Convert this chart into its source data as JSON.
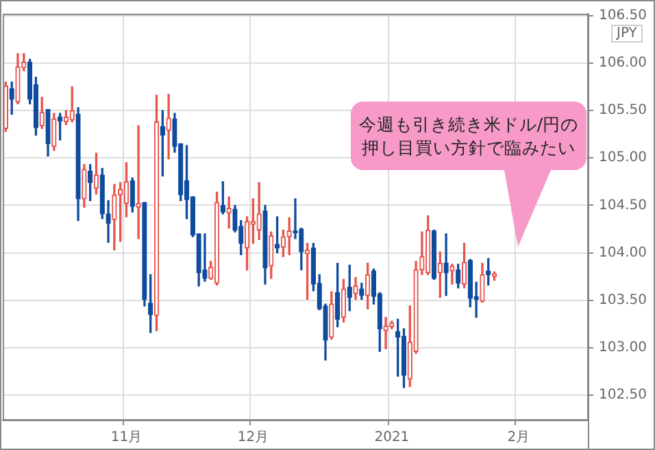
{
  "chart_data": {
    "type": "candlestick",
    "ylabel": "JPY",
    "annotations": [
      "今週も引き続き米ドル/円の押し目買い方針で臨みたい"
    ],
    "categories": [
      null,
      null,
      null,
      null,
      null,
      null,
      null,
      null,
      null,
      null,
      null,
      null,
      null,
      null,
      null,
      null,
      null,
      null,
      null,
      null,
      "11月",
      null,
      null,
      null,
      null,
      null,
      null,
      null,
      null,
      null,
      null,
      null,
      null,
      null,
      null,
      null,
      null,
      null,
      null,
      null,
      null,
      "12月",
      null,
      null,
      null,
      null,
      null,
      null,
      null,
      null,
      null,
      null,
      null,
      null,
      null,
      null,
      null,
      null,
      null,
      null,
      null,
      null,
      null,
      null,
      "2021",
      null,
      null,
      null,
      null,
      null,
      null,
      null,
      null,
      null,
      null,
      null,
      null,
      null,
      null,
      null,
      null,
      null,
      null,
      null,
      null,
      "2月",
      null,
      null,
      null,
      null,
      null,
      null,
      null,
      null,
      null,
      null,
      null
    ],
    "ohlc": [
      [
        105.31,
        105.8,
        105.28,
        105.76
      ],
      [
        105.73,
        105.8,
        105.46,
        105.62
      ],
      [
        105.59,
        106.1,
        105.57,
        105.96
      ],
      [
        105.95,
        106.1,
        105.92,
        106.01
      ],
      [
        106.01,
        106.04,
        105.57,
        105.62
      ],
      [
        105.77,
        105.85,
        105.24,
        105.32
      ],
      [
        105.34,
        105.64,
        105.31,
        105.48
      ],
      [
        105.51,
        105.51,
        105.02,
        105.15
      ],
      [
        105.12,
        105.47,
        105.08,
        105.41
      ],
      [
        105.43,
        105.47,
        105.19,
        105.39
      ],
      [
        105.38,
        105.5,
        105.35,
        105.43
      ],
      [
        105.4,
        105.75,
        105.38,
        105.5
      ],
      [
        105.46,
        105.53,
        104.34,
        104.57
      ],
      [
        104.57,
        104.93,
        104.48,
        104.88
      ],
      [
        104.86,
        104.93,
        104.55,
        104.74
      ],
      [
        104.68,
        105.05,
        104.62,
        104.82
      ],
      [
        104.82,
        104.89,
        104.36,
        104.41
      ],
      [
        104.41,
        104.55,
        104.11,
        104.31
      ],
      [
        104.35,
        104.72,
        104.03,
        104.61
      ],
      [
        104.61,
        104.74,
        104.12,
        104.67
      ],
      [
        104.52,
        104.95,
        104.38,
        104.75
      ],
      [
        104.76,
        104.79,
        104.43,
        104.49
      ],
      [
        104.48,
        105.34,
        104.15,
        104.52
      ],
      [
        104.53,
        104.53,
        103.44,
        103.51
      ],
      [
        103.47,
        103.77,
        103.16,
        103.35
      ],
      [
        103.34,
        105.66,
        103.18,
        105.38
      ],
      [
        105.33,
        105.5,
        104.81,
        105.24
      ],
      [
        105.29,
        105.67,
        104.99,
        105.42
      ],
      [
        105.41,
        105.47,
        105.06,
        105.12
      ],
      [
        105.15,
        105.15,
        104.55,
        104.61
      ],
      [
        104.76,
        105.13,
        104.36,
        104.56
      ],
      [
        104.59,
        104.59,
        104.17,
        104.19
      ],
      [
        104.2,
        104.2,
        103.65,
        103.79
      ],
      [
        103.82,
        104.2,
        103.7,
        103.73
      ],
      [
        103.73,
        103.91,
        103.72,
        103.85
      ],
      [
        103.68,
        104.64,
        103.66,
        104.53
      ],
      [
        104.5,
        104.75,
        104.41,
        104.43
      ],
      [
        104.42,
        104.59,
        104.26,
        104.47
      ],
      [
        104.46,
        104.5,
        104.22,
        104.24
      ],
      [
        104.28,
        104.34,
        103.98,
        104.1
      ],
      [
        104.05,
        104.38,
        103.82,
        104.33
      ],
      [
        104.3,
        104.57,
        104.1,
        104.33
      ],
      [
        104.24,
        104.74,
        104.14,
        104.41
      ],
      [
        104.44,
        104.5,
        103.67,
        103.84
      ],
      [
        103.86,
        104.22,
        103.73,
        104.18
      ],
      [
        104.09,
        104.38,
        104.0,
        104.05
      ],
      [
        104.06,
        104.24,
        103.96,
        104.17
      ],
      [
        104.17,
        104.37,
        103.98,
        104.23
      ],
      [
        104.23,
        104.57,
        104.15,
        104.21
      ],
      [
        104.25,
        104.26,
        103.82,
        104.01
      ],
      [
        103.99,
        104.1,
        103.51,
        104.03
      ],
      [
        104.05,
        104.1,
        103.6,
        103.67
      ],
      [
        103.68,
        103.77,
        103.4,
        103.41
      ],
      [
        103.44,
        103.46,
        102.87,
        103.08
      ],
      [
        103.11,
        103.59,
        103.09,
        103.46
      ],
      [
        103.58,
        103.89,
        103.22,
        103.3
      ],
      [
        103.32,
        103.72,
        103.27,
        103.62
      ],
      [
        103.64,
        103.87,
        103.39,
        103.53
      ],
      [
        103.57,
        103.74,
        103.51,
        103.65
      ],
      [
        103.62,
        103.68,
        103.51,
        103.55
      ],
      [
        103.55,
        103.89,
        103.41,
        103.77
      ],
      [
        103.81,
        103.83,
        103.46,
        103.54
      ],
      [
        103.57,
        103.58,
        102.96,
        103.2
      ],
      [
        103.18,
        103.32,
        102.99,
        103.23
      ],
      [
        103.22,
        103.28,
        103.2,
        103.26
      ],
      [
        103.17,
        103.3,
        102.7,
        103.11
      ],
      [
        103.12,
        103.2,
        102.58,
        102.71
      ],
      [
        102.67,
        103.44,
        102.59,
        103.06
      ],
      [
        102.96,
        103.91,
        102.94,
        103.82
      ],
      [
        103.82,
        104.22,
        103.77,
        103.96
      ],
      [
        103.79,
        104.39,
        103.77,
        104.24
      ],
      [
        104.23,
        104.24,
        103.72,
        103.73
      ],
      [
        103.79,
        104.01,
        103.53,
        103.89
      ],
      [
        103.89,
        104.2,
        103.55,
        103.79
      ],
      [
        103.81,
        103.88,
        103.67,
        103.86
      ],
      [
        103.82,
        103.88,
        103.63,
        103.68
      ],
      [
        103.67,
        104.1,
        103.63,
        103.9
      ],
      [
        103.92,
        103.93,
        103.43,
        103.52
      ],
      [
        103.54,
        103.69,
        103.32,
        103.51
      ],
      [
        103.49,
        103.89,
        103.48,
        103.77
      ],
      [
        103.81,
        103.94,
        103.66,
        103.77
      ],
      [
        103.75,
        103.8,
        103.71,
        103.78
      ],
      null,
      null,
      null,
      null,
      null,
      null,
      null,
      null,
      null,
      null,
      null,
      null,
      null,
      null,
      null
    ],
    "ylim": [
      102.24,
      106.52
    ],
    "yticks": [
      {
        "value": 102.5,
        "label": "102.50"
      },
      {
        "value": 103,
        "label": "103.00"
      },
      {
        "value": 103.5,
        "label": "103.50"
      },
      {
        "value": 104,
        "label": "104.00"
      },
      {
        "value": 104.5,
        "label": "104.50"
      },
      {
        "value": 105,
        "label": "105.00"
      },
      {
        "value": 105.5,
        "label": "105.50"
      },
      {
        "value": 106,
        "label": "106.00"
      },
      {
        "value": 106.5,
        "label": "106.50"
      }
    ],
    "grid": true,
    "legend": false
  }
}
